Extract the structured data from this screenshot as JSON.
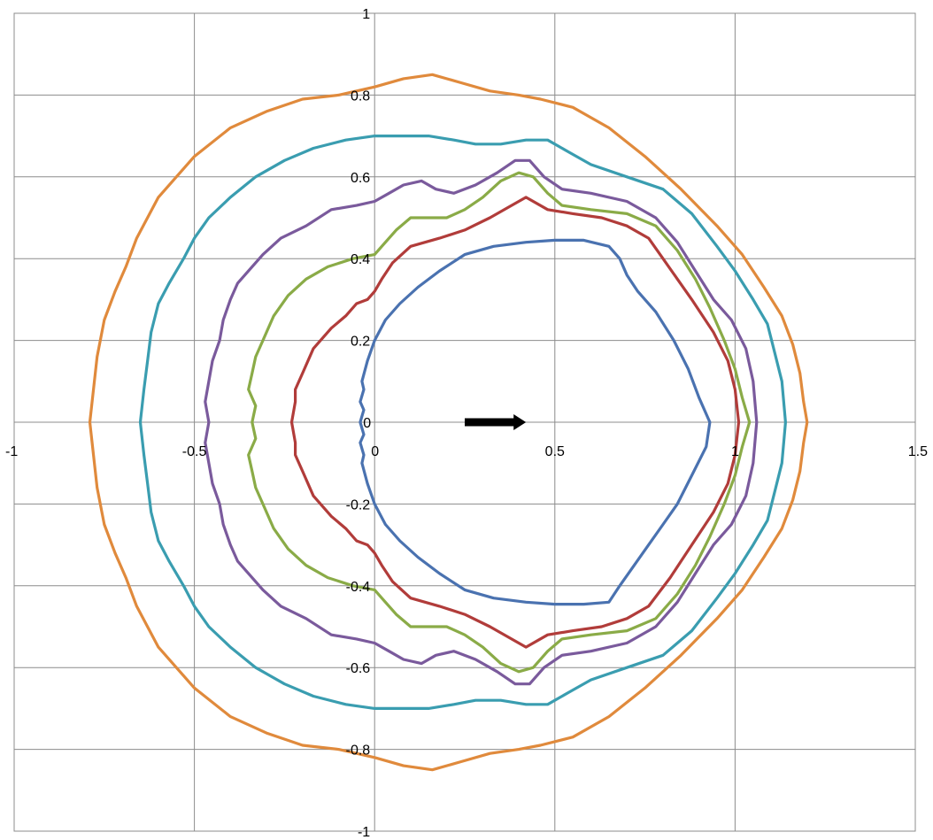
{
  "chart_data": {
    "type": "line",
    "title": "",
    "xlabel": "",
    "ylabel": "",
    "xlim": [
      -1,
      1.5
    ],
    "ylim": [
      -1,
      1
    ],
    "xtick_step": 0.5,
    "ytick_step": 0.2,
    "grid": true,
    "legend": "none",
    "x_ticks": [
      {
        "value": -1,
        "label": "-1"
      },
      {
        "value": -0.5,
        "label": "-0.5"
      },
      {
        "value": 0,
        "label": "0"
      },
      {
        "value": 0.5,
        "label": "0.5"
      },
      {
        "value": 1,
        "label": "1"
      },
      {
        "value": 1.5,
        "label": "1.5"
      }
    ],
    "y_ticks": [
      {
        "value": 1,
        "label": "1"
      },
      {
        "value": 0.8,
        "label": "0.8"
      },
      {
        "value": 0.6,
        "label": "0.6"
      },
      {
        "value": 0.4,
        "label": "0.4"
      },
      {
        "value": 0.2,
        "label": "0.2"
      },
      {
        "value": 0,
        "label": "0"
      },
      {
        "value": -0.2,
        "label": "-0.2"
      },
      {
        "value": -0.4,
        "label": "-0.4"
      },
      {
        "value": -0.6,
        "label": "-0.6"
      },
      {
        "value": -0.8,
        "label": "-0.8"
      },
      {
        "value": -1,
        "label": "-1"
      }
    ],
    "arrow": {
      "x_start": 0.25,
      "x_end": 0.42,
      "y": 0,
      "color": "#000000"
    },
    "series": [
      {
        "color": "#4a72b0",
        "x": [
          -0.04,
          -0.03,
          -0.04,
          -0.03,
          -0.035,
          -0.02,
          0.0,
          0.03,
          0.07,
          0.12,
          0.18,
          0.25,
          0.33,
          0.42,
          0.5,
          0.58,
          0.65,
          0.68,
          0.7,
          0.73,
          0.78,
          0.83,
          0.87,
          0.9,
          0.93,
          0.92,
          0.88,
          0.84,
          0.8,
          0.76,
          0.72,
          0.68,
          0.65,
          0.58,
          0.5,
          0.42,
          0.33,
          0.25,
          0.18,
          0.12,
          0.07,
          0.03,
          0.0,
          -0.02,
          -0.035,
          -0.03,
          -0.04,
          -0.03,
          -0.04
        ],
        "y": [
          0.0,
          0.03,
          0.05,
          0.08,
          0.1,
          0.15,
          0.2,
          0.25,
          0.29,
          0.33,
          0.37,
          0.41,
          0.43,
          0.44,
          0.445,
          0.445,
          0.43,
          0.4,
          0.36,
          0.32,
          0.27,
          0.2,
          0.13,
          0.06,
          0.0,
          -0.06,
          -0.13,
          -0.2,
          -0.25,
          -0.3,
          -0.35,
          -0.4,
          -0.44,
          -0.445,
          -0.445,
          -0.44,
          -0.43,
          -0.41,
          -0.37,
          -0.33,
          -0.29,
          -0.25,
          -0.2,
          -0.15,
          -0.1,
          -0.08,
          -0.05,
          -0.03,
          0.0
        ]
      },
      {
        "color": "#b13c3a",
        "x": [
          -0.23,
          -0.22,
          -0.22,
          -0.2,
          -0.17,
          -0.12,
          -0.08,
          -0.05,
          -0.02,
          0.0,
          0.02,
          0.05,
          0.1,
          0.18,
          0.25,
          0.32,
          0.38,
          0.42,
          0.48,
          0.55,
          0.63,
          0.7,
          0.76,
          0.8,
          0.88,
          0.94,
          0.98,
          1.0,
          1.01,
          1.0,
          0.98,
          0.94,
          0.88,
          0.82,
          0.76,
          0.7,
          0.63,
          0.55,
          0.48,
          0.42,
          0.38,
          0.32,
          0.25,
          0.18,
          0.1,
          0.05,
          0.02,
          0.0,
          -0.02,
          -0.05,
          -0.08,
          -0.12,
          -0.17,
          -0.2,
          -0.22,
          -0.22,
          -0.23
        ],
        "y": [
          0.0,
          0.05,
          0.08,
          0.12,
          0.18,
          0.23,
          0.26,
          0.29,
          0.3,
          0.32,
          0.35,
          0.39,
          0.43,
          0.45,
          0.47,
          0.5,
          0.53,
          0.55,
          0.52,
          0.51,
          0.5,
          0.48,
          0.45,
          0.4,
          0.3,
          0.22,
          0.15,
          0.08,
          0.0,
          -0.08,
          -0.15,
          -0.22,
          -0.3,
          -0.38,
          -0.45,
          -0.48,
          -0.5,
          -0.51,
          -0.52,
          -0.55,
          -0.53,
          -0.5,
          -0.47,
          -0.45,
          -0.43,
          -0.39,
          -0.35,
          -0.32,
          -0.3,
          -0.29,
          -0.26,
          -0.23,
          -0.18,
          -0.12,
          -0.08,
          -0.05,
          0.0
        ]
      },
      {
        "color": "#8aab47",
        "x": [
          -0.34,
          -0.33,
          -0.35,
          -0.34,
          -0.33,
          -0.31,
          -0.28,
          -0.24,
          -0.19,
          -0.13,
          -0.06,
          0.0,
          0.03,
          0.06,
          0.1,
          0.15,
          0.2,
          0.25,
          0.3,
          0.35,
          0.4,
          0.44,
          0.48,
          0.52,
          0.6,
          0.7,
          0.78,
          0.84,
          0.89,
          0.93,
          0.97,
          1.0,
          1.02,
          1.04,
          1.02,
          1.0,
          0.97,
          0.93,
          0.89,
          0.84,
          0.78,
          0.7,
          0.6,
          0.52,
          0.48,
          0.44,
          0.4,
          0.35,
          0.3,
          0.25,
          0.2,
          0.15,
          0.1,
          0.06,
          0.03,
          0.0,
          -0.06,
          -0.13,
          -0.19,
          -0.24,
          -0.28,
          -0.31,
          -0.33,
          -0.34,
          -0.35,
          -0.33,
          -0.34
        ],
        "y": [
          0.0,
          0.04,
          0.08,
          0.12,
          0.16,
          0.2,
          0.26,
          0.31,
          0.35,
          0.38,
          0.4,
          0.41,
          0.44,
          0.47,
          0.5,
          0.5,
          0.5,
          0.52,
          0.55,
          0.59,
          0.61,
          0.6,
          0.56,
          0.53,
          0.52,
          0.51,
          0.48,
          0.42,
          0.35,
          0.28,
          0.2,
          0.13,
          0.06,
          0.0,
          -0.06,
          -0.13,
          -0.2,
          -0.28,
          -0.35,
          -0.42,
          -0.48,
          -0.51,
          -0.52,
          -0.53,
          -0.56,
          -0.6,
          -0.61,
          -0.59,
          -0.55,
          -0.52,
          -0.5,
          -0.5,
          -0.5,
          -0.47,
          -0.44,
          -0.41,
          -0.4,
          -0.38,
          -0.35,
          -0.31,
          -0.26,
          -0.2,
          -0.16,
          -0.12,
          -0.08,
          -0.04,
          0.0
        ]
      },
      {
        "color": "#7a5a9c",
        "x": [
          -0.46,
          -0.47,
          -0.46,
          -0.45,
          -0.43,
          -0.42,
          -0.4,
          -0.38,
          -0.35,
          -0.31,
          -0.26,
          -0.19,
          -0.12,
          -0.05,
          0.0,
          0.04,
          0.08,
          0.13,
          0.17,
          0.22,
          0.28,
          0.34,
          0.39,
          0.43,
          0.47,
          0.52,
          0.6,
          0.7,
          0.78,
          0.84,
          0.89,
          0.94,
          0.99,
          1.03,
          1.05,
          1.06,
          1.05,
          1.03,
          0.99,
          0.94,
          0.89,
          0.84,
          0.78,
          0.7,
          0.6,
          0.52,
          0.47,
          0.43,
          0.39,
          0.34,
          0.28,
          0.22,
          0.17,
          0.13,
          0.08,
          0.04,
          0.0,
          -0.05,
          -0.12,
          -0.19,
          -0.26,
          -0.31,
          -0.35,
          -0.38,
          -0.4,
          -0.42,
          -0.43,
          -0.45,
          -0.46,
          -0.47,
          -0.46
        ],
        "y": [
          0.0,
          0.05,
          0.1,
          0.15,
          0.2,
          0.25,
          0.3,
          0.34,
          0.37,
          0.41,
          0.45,
          0.48,
          0.52,
          0.53,
          0.54,
          0.56,
          0.58,
          0.59,
          0.57,
          0.56,
          0.58,
          0.61,
          0.64,
          0.64,
          0.6,
          0.57,
          0.56,
          0.54,
          0.5,
          0.44,
          0.37,
          0.3,
          0.25,
          0.18,
          0.1,
          0.0,
          -0.1,
          -0.18,
          -0.25,
          -0.3,
          -0.37,
          -0.44,
          -0.5,
          -0.54,
          -0.56,
          -0.57,
          -0.6,
          -0.64,
          -0.64,
          -0.61,
          -0.58,
          -0.56,
          -0.57,
          -0.59,
          -0.58,
          -0.56,
          -0.54,
          -0.53,
          -0.52,
          -0.48,
          -0.45,
          -0.41,
          -0.37,
          -0.34,
          -0.3,
          -0.25,
          -0.2,
          -0.15,
          -0.1,
          -0.05,
          0.0
        ]
      },
      {
        "color": "#3a9db0",
        "x": [
          -0.65,
          -0.64,
          -0.63,
          -0.62,
          -0.6,
          -0.57,
          -0.53,
          -0.5,
          -0.46,
          -0.4,
          -0.33,
          -0.25,
          -0.17,
          -0.08,
          0.0,
          0.08,
          0.15,
          0.22,
          0.28,
          0.35,
          0.42,
          0.48,
          0.54,
          0.6,
          0.7,
          0.8,
          0.88,
          0.95,
          1.0,
          1.05,
          1.09,
          1.11,
          1.13,
          1.14,
          1.13,
          1.11,
          1.09,
          1.05,
          1.0,
          0.95,
          0.88,
          0.8,
          0.7,
          0.6,
          0.54,
          0.48,
          0.42,
          0.35,
          0.28,
          0.22,
          0.15,
          0.08,
          0.0,
          -0.08,
          -0.17,
          -0.25,
          -0.33,
          -0.4,
          -0.46,
          -0.5,
          -0.53,
          -0.57,
          -0.6,
          -0.62,
          -0.63,
          -0.64,
          -0.65
        ],
        "y": [
          0.0,
          0.08,
          0.15,
          0.22,
          0.29,
          0.34,
          0.4,
          0.45,
          0.5,
          0.55,
          0.6,
          0.64,
          0.67,
          0.69,
          0.7,
          0.7,
          0.7,
          0.69,
          0.68,
          0.68,
          0.69,
          0.69,
          0.66,
          0.63,
          0.6,
          0.57,
          0.51,
          0.43,
          0.37,
          0.3,
          0.24,
          0.17,
          0.1,
          0.0,
          -0.1,
          -0.17,
          -0.24,
          -0.3,
          -0.37,
          -0.43,
          -0.51,
          -0.57,
          -0.6,
          -0.63,
          -0.66,
          -0.69,
          -0.69,
          -0.68,
          -0.68,
          -0.69,
          -0.7,
          -0.7,
          -0.7,
          -0.69,
          -0.67,
          -0.64,
          -0.6,
          -0.55,
          -0.5,
          -0.45,
          -0.4,
          -0.34,
          -0.29,
          -0.22,
          -0.15,
          -0.08,
          0.0
        ]
      },
      {
        "color": "#e08a3c",
        "x": [
          -0.79,
          -0.78,
          -0.77,
          -0.75,
          -0.72,
          -0.69,
          -0.66,
          -0.6,
          -0.5,
          -0.4,
          -0.3,
          -0.2,
          -0.1,
          0.0,
          0.08,
          0.16,
          0.24,
          0.32,
          0.4,
          0.46,
          0.55,
          0.65,
          0.75,
          0.85,
          0.95,
          1.02,
          1.08,
          1.13,
          1.16,
          1.18,
          1.19,
          1.2,
          1.19,
          1.18,
          1.16,
          1.13,
          1.08,
          1.02,
          0.95,
          0.85,
          0.75,
          0.65,
          0.55,
          0.46,
          0.4,
          0.32,
          0.24,
          0.16,
          0.08,
          0.0,
          -0.1,
          -0.2,
          -0.3,
          -0.4,
          -0.5,
          -0.6,
          -0.66,
          -0.69,
          -0.72,
          -0.75,
          -0.77,
          -0.78,
          -0.79
        ],
        "y": [
          0.0,
          0.08,
          0.16,
          0.25,
          0.32,
          0.38,
          0.45,
          0.55,
          0.65,
          0.72,
          0.76,
          0.79,
          0.8,
          0.82,
          0.84,
          0.85,
          0.83,
          0.81,
          0.8,
          0.79,
          0.77,
          0.72,
          0.65,
          0.57,
          0.48,
          0.41,
          0.33,
          0.26,
          0.19,
          0.12,
          0.05,
          0.0,
          -0.05,
          -0.12,
          -0.19,
          -0.26,
          -0.33,
          -0.41,
          -0.48,
          -0.57,
          -0.65,
          -0.72,
          -0.77,
          -0.79,
          -0.8,
          -0.81,
          -0.83,
          -0.85,
          -0.84,
          -0.82,
          -0.8,
          -0.79,
          -0.76,
          -0.72,
          -0.65,
          -0.55,
          -0.45,
          -0.38,
          -0.32,
          -0.25,
          -0.16,
          -0.08,
          0.0
        ]
      }
    ]
  }
}
